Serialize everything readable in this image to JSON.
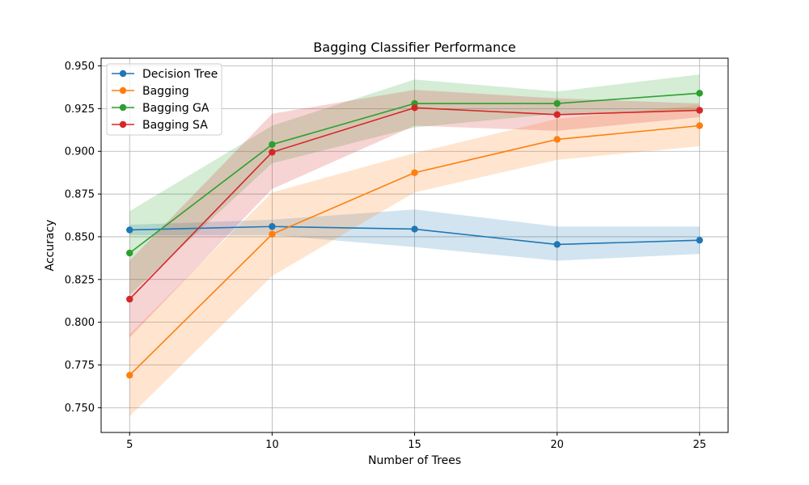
{
  "chart_data": {
    "type": "line",
    "title": "Bagging Classifier Performance",
    "xlabel": "Number of Trees",
    "ylabel": "Accuracy",
    "x": [
      5,
      10,
      15,
      20,
      25
    ],
    "xticks": [
      "5",
      "10",
      "15",
      "20",
      "25"
    ],
    "yticks": [
      "0.750",
      "0.775",
      "0.800",
      "0.825",
      "0.850",
      "0.875",
      "0.900",
      "0.925",
      "0.950"
    ],
    "xlim": [
      4.0,
      26.0
    ],
    "ylim": [
      0.7355,
      0.9545
    ],
    "grid": true,
    "legend_position": "top-left",
    "series": [
      {
        "name": "Decision Tree",
        "color": "#1f77b4",
        "values": [
          0.854,
          0.856,
          0.8545,
          0.8455,
          0.848
        ],
        "lower": [
          0.851,
          0.851,
          0.844,
          0.836,
          0.84
        ],
        "upper": [
          0.857,
          0.86,
          0.866,
          0.856,
          0.856
        ]
      },
      {
        "name": "Bagging",
        "color": "#ff7f0e",
        "values": [
          0.769,
          0.8515,
          0.8875,
          0.907,
          0.915
        ],
        "lower": [
          0.745,
          0.827,
          0.876,
          0.895,
          0.903
        ],
        "upper": [
          0.793,
          0.876,
          0.899,
          0.919,
          0.927
        ]
      },
      {
        "name": "Bagging GA",
        "color": "#2ca02c",
        "values": [
          0.8405,
          0.904,
          0.928,
          0.928,
          0.934
        ],
        "lower": [
          0.816,
          0.893,
          0.914,
          0.922,
          0.924
        ],
        "upper": [
          0.865,
          0.915,
          0.942,
          0.935,
          0.945
        ]
      },
      {
        "name": "Bagging SA",
        "color": "#d62728",
        "values": [
          0.8135,
          0.8995,
          0.9255,
          0.9215,
          0.924
        ],
        "lower": [
          0.791,
          0.878,
          0.915,
          0.912,
          0.92
        ],
        "upper": [
          0.836,
          0.922,
          0.936,
          0.931,
          0.928
        ]
      }
    ]
  }
}
